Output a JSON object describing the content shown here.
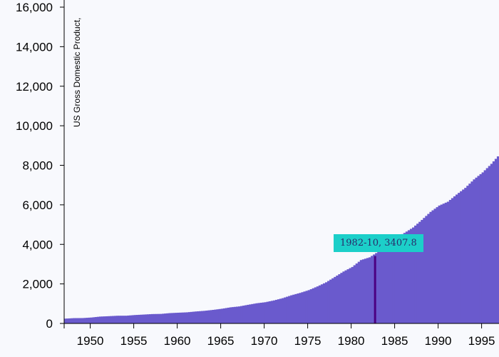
{
  "chart_data": {
    "type": "bar",
    "ylabel": "US Gross Domestic Product,",
    "x_ticks": [
      "1950",
      "1955",
      "1960",
      "1965",
      "1970",
      "1975",
      "1980",
      "1985",
      "1990",
      "1995"
    ],
    "y_ticks": [
      "0",
      "2,000",
      "4,000",
      "6,000",
      "8,000",
      "10,000",
      "12,000",
      "14,000",
      "16,000"
    ],
    "xlim": [
      1947,
      1997
    ],
    "ylim": [
      0,
      16000
    ],
    "bar_color": "#6a5acd",
    "highlight_color": "#4b0082",
    "tooltip_color": "#1ccfc9",
    "grid": false,
    "x": [
      1947,
      1948,
      1949,
      1950,
      1951,
      1952,
      1953,
      1954,
      1955,
      1956,
      1957,
      1958,
      1959,
      1960,
      1961,
      1962,
      1963,
      1964,
      1965,
      1966,
      1967,
      1968,
      1969,
      1970,
      1971,
      1972,
      1973,
      1974,
      1975,
      1976,
      1977,
      1978,
      1979,
      1980,
      1981,
      1982,
      1983,
      1984,
      1985,
      1986,
      1987,
      1988,
      1989,
      1990,
      1991,
      1992,
      1993,
      1994,
      1995,
      1996,
      1997
    ],
    "values": [
      243,
      269,
      272,
      300,
      347,
      367,
      389,
      391,
      425,
      449,
      474,
      482,
      522,
      543,
      563,
      605,
      638,
      686,
      743,
      815,
      861,
      942,
      1020,
      1074,
      1165,
      1279,
      1425,
      1545,
      1685,
      1873,
      2082,
      2352,
      2627,
      2857,
      3207,
      3344,
      3634,
      4037,
      4339,
      4579,
      4855,
      5236,
      5642,
      5963,
      6158,
      6520,
      6858,
      7287,
      7640,
      8073,
      8578
    ],
    "highlight": {
      "x": 1982.75,
      "label": "1982-10, 3407.8",
      "value": 3407.8
    }
  }
}
